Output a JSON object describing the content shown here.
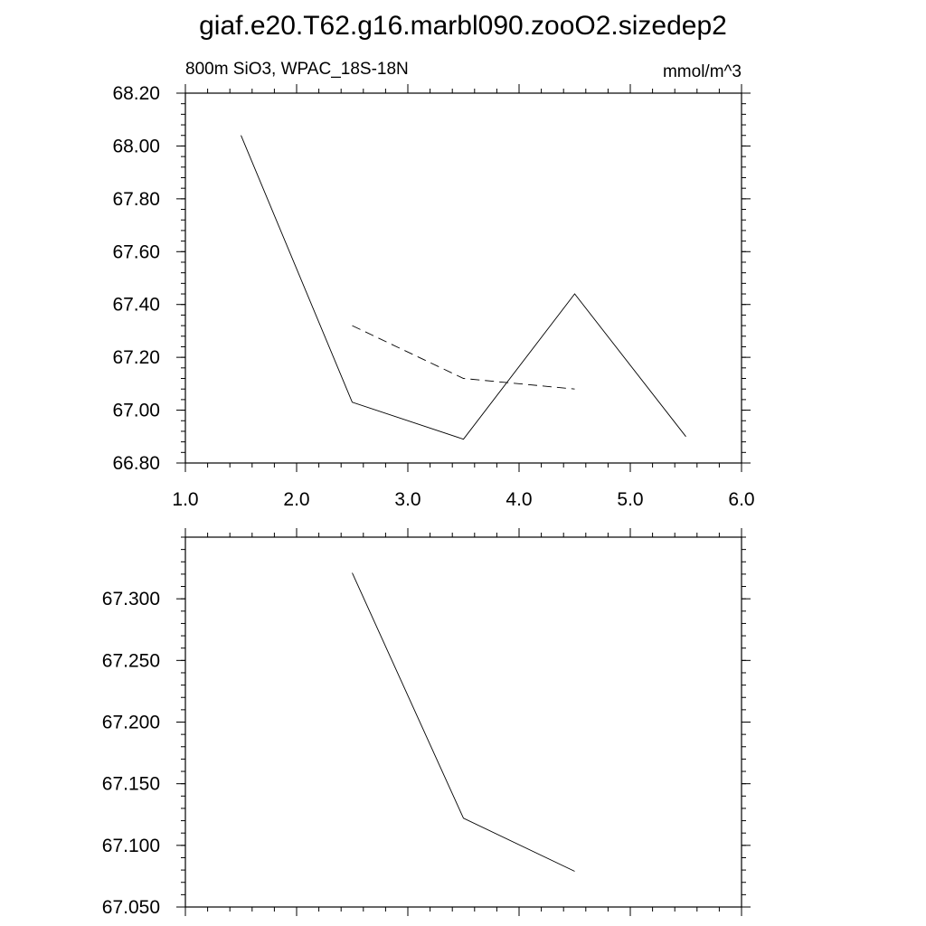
{
  "title": "giaf.e20.T62.g16.marbl090.zooO2.sizedep2",
  "chart_data": [
    {
      "type": "line",
      "left_string": "800m SiO3, WPAC_18S-18N",
      "right_string": "mmol/m^3",
      "xlim": [
        1.0,
        6.0
      ],
      "ylim": [
        66.8,
        68.2
      ],
      "x_ticks": [
        "1.0",
        "2.0",
        "3.0",
        "4.0",
        "5.0",
        "6.0"
      ],
      "y_ticks": [
        "66.80",
        "67.00",
        "67.20",
        "67.40",
        "67.60",
        "67.80",
        "68.00",
        "68.20"
      ],
      "series": [
        {
          "x": [
            1.5,
            2.5,
            3.5,
            4.5,
            5.5
          ],
          "values": [
            68.04,
            67.03,
            66.89,
            67.44,
            66.9
          ],
          "line_style": "solid"
        },
        {
          "x": [
            2.5,
            3.5,
            4.5
          ],
          "values": [
            67.32,
            67.12,
            67.08
          ],
          "line_style": "dashed"
        }
      ]
    },
    {
      "type": "line",
      "xlim": [
        1.0,
        6.0
      ],
      "ylim": [
        67.05,
        67.35
      ],
      "y_ticks": [
        "67.050",
        "67.100",
        "67.150",
        "67.200",
        "67.250",
        "67.300"
      ],
      "series": [
        {
          "x": [
            2.5,
            3.5,
            4.5
          ],
          "values": [
            67.321,
            67.122,
            67.079
          ],
          "line_style": "solid"
        }
      ]
    }
  ]
}
